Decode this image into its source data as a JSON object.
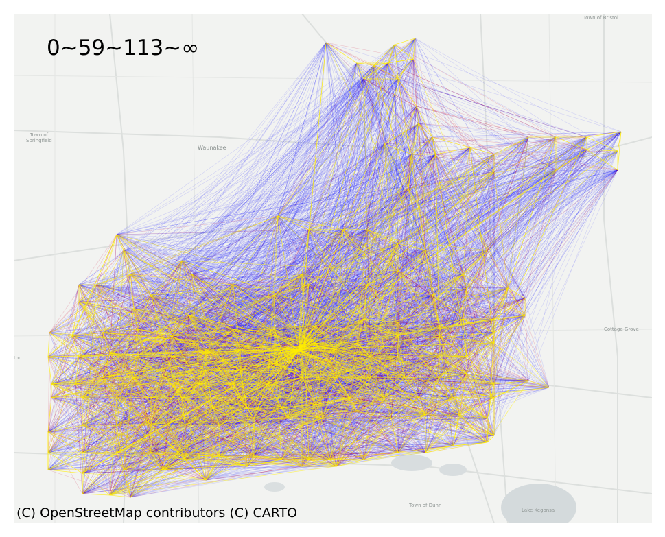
{
  "title": "0~59~113~∞",
  "attribution": "(C) OpenStreetMap contributors (C) CARTO",
  "place_labels": {
    "town_of_bristol": "Town of Bristol",
    "town_of_springfield_1": "Town of",
    "town_of_springfield_2": "Springfield",
    "waunakee": "Waunakee",
    "cottage_grove": "Cottage Grove",
    "middleton_fragment": "ton",
    "town_of_dunn": "Town of Dunn",
    "lake_kegonsa": "Lake Kegonsa"
  },
  "legend_thresholds": [
    0,
    59,
    113,
    "∞"
  ],
  "colors": {
    "basemap": "#f2f3f1",
    "road": "#d9dcda",
    "water": "#d4dadc",
    "low_flow": "#1a1aff",
    "mid_flow": "#cc0033",
    "high_flow": "#ffee00"
  },
  "icons": {
    "flow-network": "origin-destination flow lines",
    "basemap": "light carto basemap"
  }
}
